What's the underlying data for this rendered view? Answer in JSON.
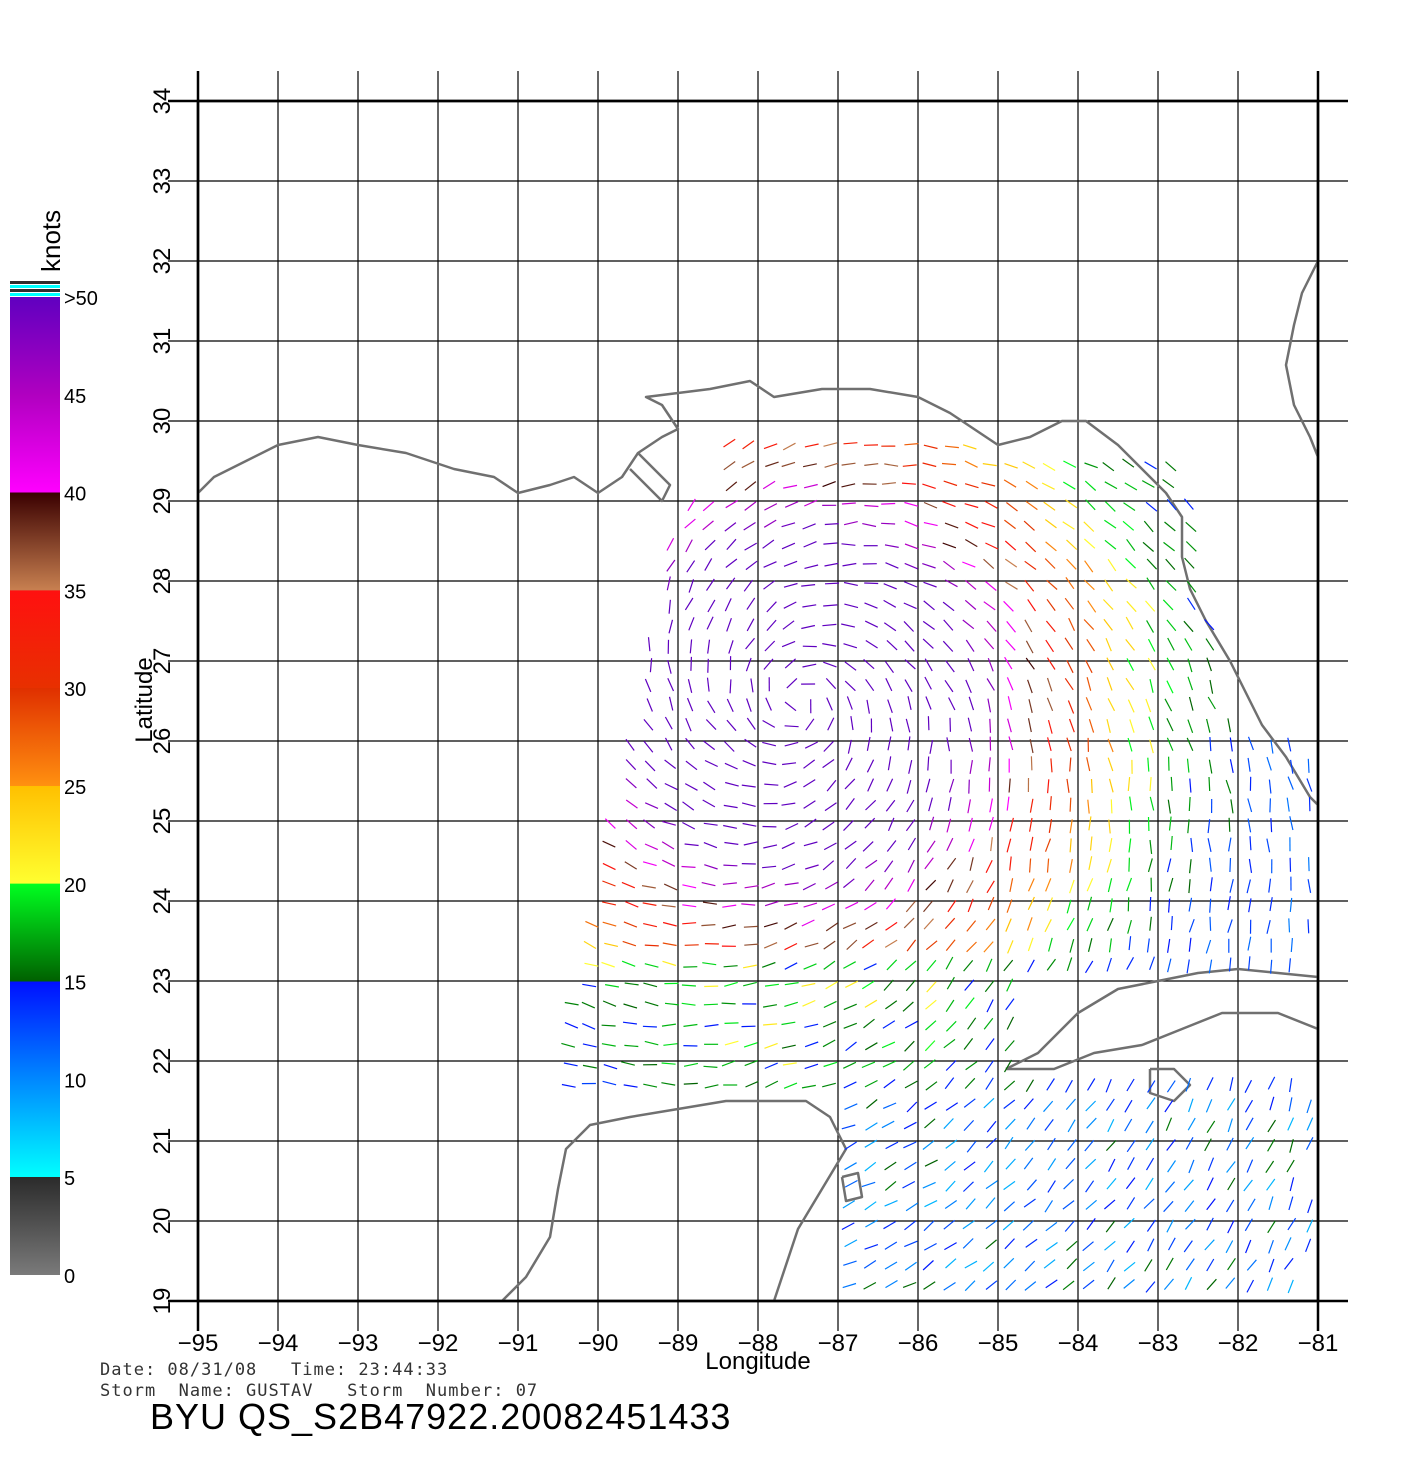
{
  "map": {
    "lon_ticks": [
      -95,
      -94,
      -93,
      -92,
      -91,
      -90,
      -89,
      -88,
      -87,
      -86,
      -85,
      -84,
      -83,
      -82,
      -81
    ],
    "lat_ticks": [
      19,
      20,
      21,
      22,
      23,
      24,
      25,
      26,
      27,
      28,
      29,
      30,
      31,
      32,
      33,
      34
    ],
    "lon_range": [
      -95,
      -81
    ],
    "lat_range": [
      19,
      34
    ],
    "xlabel": "Longitude",
    "ylabel": "Latitude",
    "grid": true,
    "coast_color": "#707070"
  },
  "colorbar": {
    "unit": "knots",
    "labels": [
      "0",
      "5",
      "10",
      "15",
      "20",
      "25",
      "30",
      "35",
      "40",
      "45",
      ">50"
    ],
    "stops": [
      {
        "value": 0,
        "color": "#7a7a7a"
      },
      {
        "value": 5,
        "color": "#2b2b2b"
      },
      {
        "value": 5.01,
        "color": "#00ffff"
      },
      {
        "value": 10,
        "color": "#0088ff"
      },
      {
        "value": 15,
        "color": "#0010ff"
      },
      {
        "value": 15.01,
        "color": "#006000"
      },
      {
        "value": 20,
        "color": "#00ff20"
      },
      {
        "value": 20.01,
        "color": "#ffff30"
      },
      {
        "value": 25,
        "color": "#ffc000"
      },
      {
        "value": 25.01,
        "color": "#ff9010"
      },
      {
        "value": 30,
        "color": "#e03000"
      },
      {
        "value": 30.01,
        "color": "#e83000"
      },
      {
        "value": 35,
        "color": "#ff1010"
      },
      {
        "value": 35.01,
        "color": "#c88050"
      },
      {
        "value": 40,
        "color": "#3a0000"
      },
      {
        "value": 40.01,
        "color": "#ff00ff"
      },
      {
        "value": 45,
        "color": "#b000c0"
      },
      {
        "value": 50,
        "color": "#6000c0"
      }
    ]
  },
  "wind_field": {
    "center_lat_lon": [
      26.5,
      -87.5
    ],
    "description_colors": {
      "calm": "#00ffff",
      "light": "#0030ff",
      "moderate": "#00cc00",
      "fresh": "#ffd000",
      "strong": "#ff6000",
      "gale": "#ff2000",
      "storm": "#c000d0"
    }
  },
  "info": {
    "date_line": "Date: 08/31/08   Time: 23:44:33",
    "storm_line": "Storm  Name: GUSTAV   Storm  Number: 07",
    "id": "BYU  QS_S2B47922.20082451433"
  }
}
